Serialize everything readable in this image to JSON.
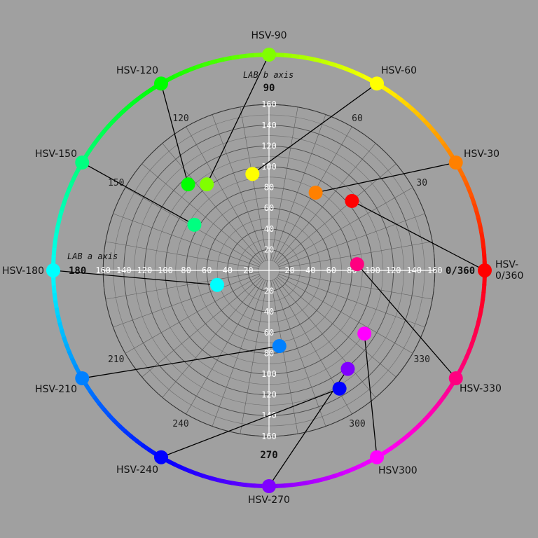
{
  "axes": {
    "b_axis_title": "LAB b axis",
    "a_axis_title": "LAB a axis",
    "b_ticks": [
      "160",
      "140",
      "120",
      "100",
      "80",
      "60",
      "40",
      "20",
      "20",
      "40",
      "60",
      "80",
      "100",
      "120",
      "140",
      "160"
    ],
    "a_ticks": [
      "160",
      "140",
      "120",
      "100",
      "80",
      "60",
      "40",
      "20",
      "20",
      "40",
      "60",
      "80",
      "100",
      "120",
      "140",
      "160"
    ],
    "b_tick_values": [
      160,
      140,
      120,
      100,
      80,
      60,
      40,
      20,
      -20,
      -40,
      -60,
      -80,
      -100,
      -120,
      -140,
      -160
    ],
    "a_tick_values": [
      -160,
      -140,
      -120,
      -100,
      -80,
      -60,
      -40,
      -20,
      20,
      40,
      60,
      80,
      100,
      120,
      140,
      160
    ]
  },
  "angle_labels": [
    {
      "text": "0/360",
      "angle": 0,
      "bold": true
    },
    {
      "text": "30",
      "angle": 30,
      "bold": false
    },
    {
      "text": "60",
      "angle": 60,
      "bold": false
    },
    {
      "text": "90",
      "angle": 90,
      "bold": true
    },
    {
      "text": "120",
      "angle": 120,
      "bold": false
    },
    {
      "text": "150",
      "angle": 150,
      "bold": false
    },
    {
      "text": "180",
      "angle": 180,
      "bold": true
    },
    {
      "text": "210",
      "angle": 210,
      "bold": false
    },
    {
      "text": "240",
      "angle": 240,
      "bold": false
    },
    {
      "text": "270",
      "angle": 270,
      "bold": true
    },
    {
      "text": "300",
      "angle": 300,
      "bold": false
    },
    {
      "text": "330",
      "angle": 330,
      "bold": false
    }
  ],
  "hues": [
    {
      "hue": 0,
      "label": "HSV-\n0/360",
      "color": "#ff0000",
      "lab_a": 80,
      "lab_b": 67
    },
    {
      "hue": 30,
      "label": "HSV-30",
      "color": "#ff8000",
      "lab_a": 45,
      "lab_b": 75
    },
    {
      "hue": 60,
      "label": "HSV-60",
      "color": "#ffff00",
      "lab_a": -16,
      "lab_b": 93
    },
    {
      "hue": 90,
      "label": "HSV-90",
      "color": "#80ff00",
      "lab_a": -60,
      "lab_b": 83
    },
    {
      "hue": 120,
      "label": "HSV-120",
      "color": "#00ff00",
      "lab_a": -78,
      "lab_b": 83
    },
    {
      "hue": 150,
      "label": "HSV-150",
      "color": "#00ff80",
      "lab_a": -72,
      "lab_b": 44
    },
    {
      "hue": 180,
      "label": "HSV-180",
      "color": "#00ffff",
      "lab_a": -50,
      "lab_b": -14
    },
    {
      "hue": 210,
      "label": "HSV-210",
      "color": "#0080ff",
      "lab_a": 10,
      "lab_b": -73
    },
    {
      "hue": 240,
      "label": "HSV-240",
      "color": "#0000ff",
      "lab_a": 68,
      "lab_b": -114
    },
    {
      "hue": 270,
      "label": "HSV-270",
      "color": "#8000ff",
      "lab_a": 76,
      "lab_b": -95
    },
    {
      "hue": 300,
      "label": "HSV300",
      "color": "#ff00ff",
      "lab_a": 92,
      "lab_b": -61
    },
    {
      "hue": 330,
      "label": "HSV-330",
      "color": "#ff0080",
      "lab_a": 85,
      "lab_b": 6
    }
  ]
}
